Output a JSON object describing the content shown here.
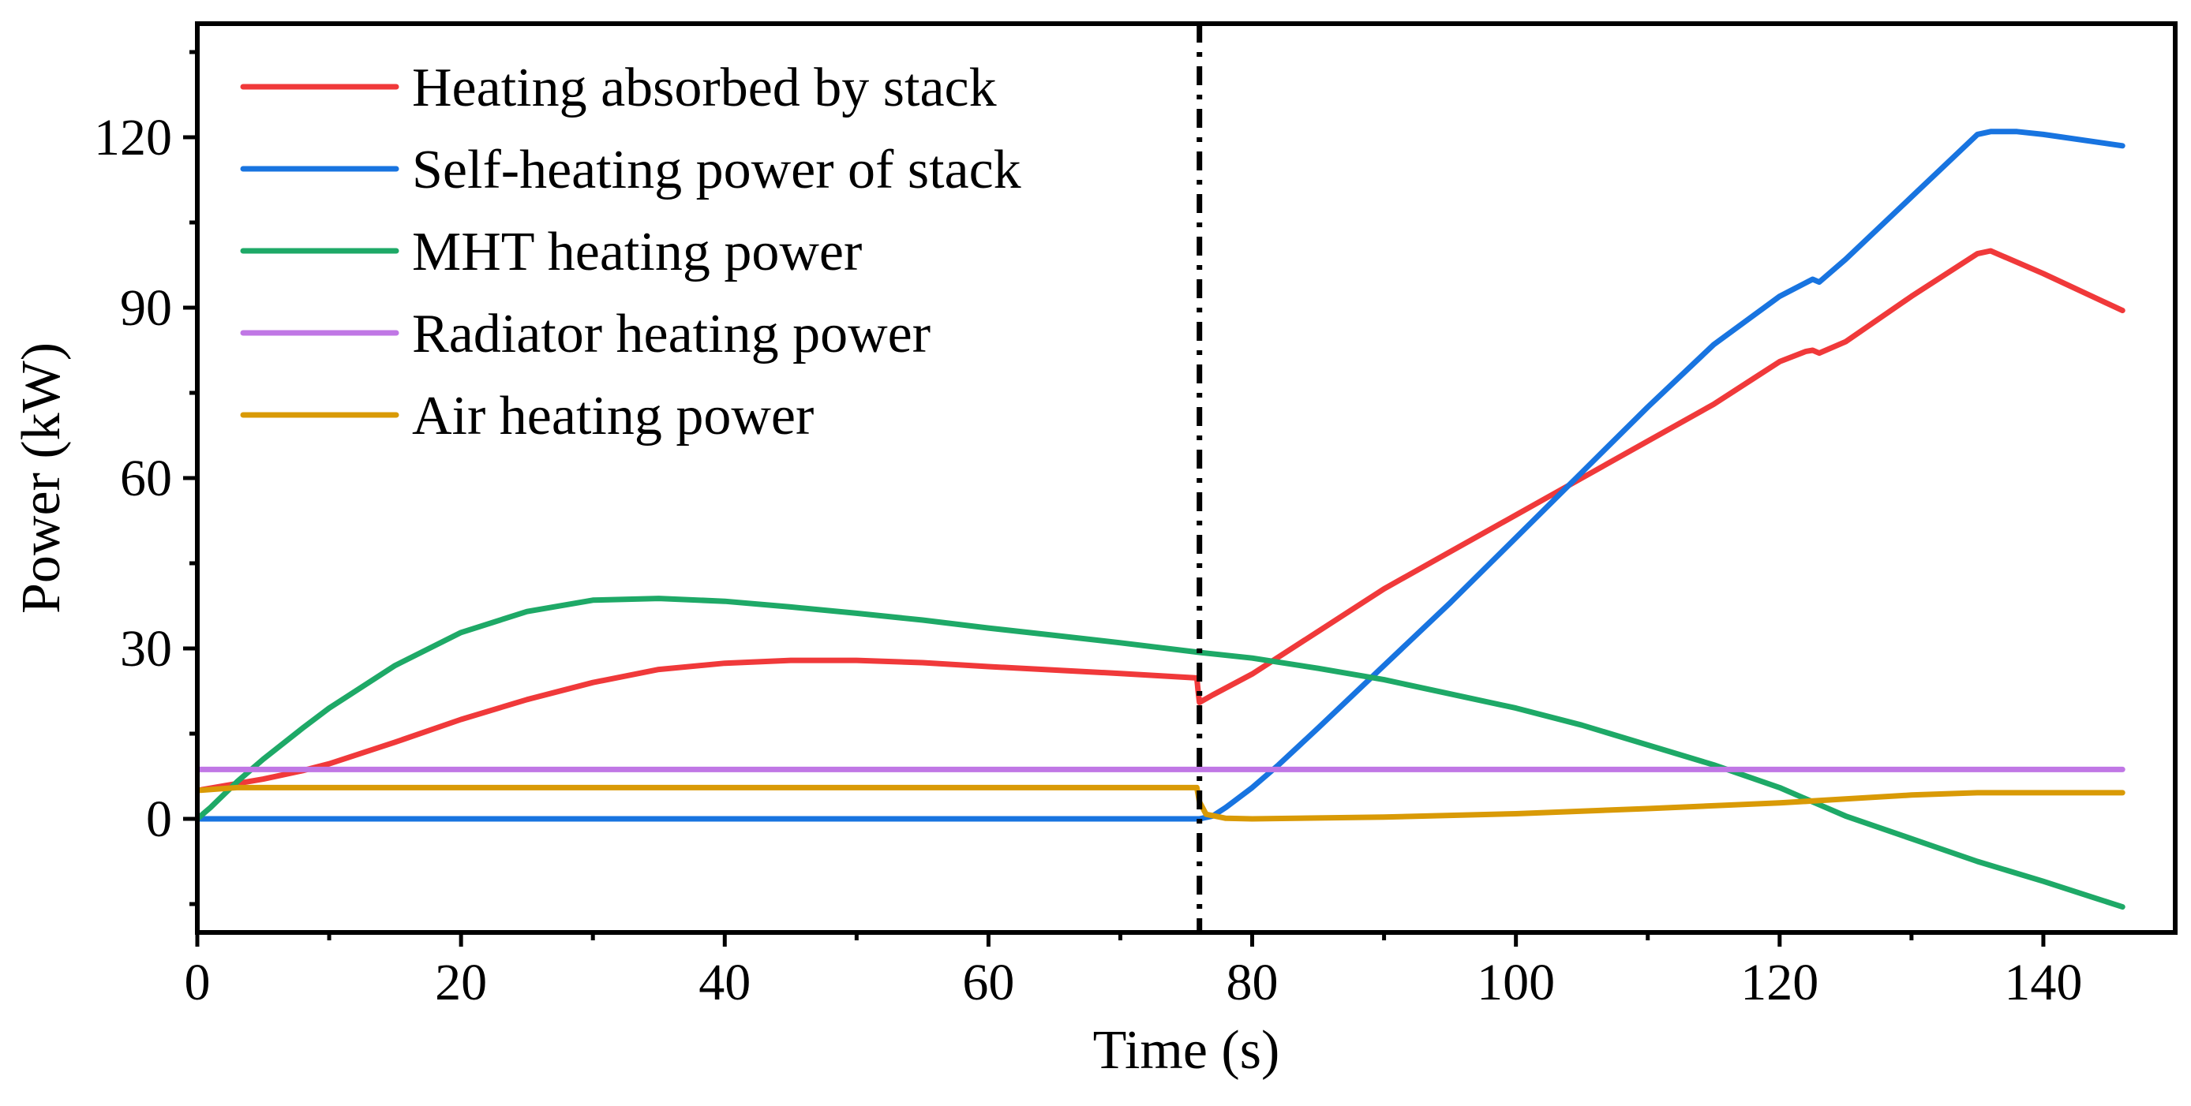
{
  "chart_data": {
    "type": "line",
    "title": "",
    "xlabel": "Time (s)",
    "ylabel": "Power (kW)",
    "xlim": [
      0,
      150
    ],
    "ylim": [
      -20,
      140
    ],
    "xticks": [
      0,
      20,
      40,
      60,
      80,
      100,
      120,
      140
    ],
    "xtick_labels": [
      "0",
      "20",
      "40",
      "60",
      "80",
      "100",
      "120",
      "140"
    ],
    "yticks": [
      0,
      30,
      60,
      90,
      120
    ],
    "ytick_labels": [
      "0",
      "30",
      "60",
      "90",
      "120"
    ],
    "x_minor_step": 10,
    "y_minor_step": 15,
    "grid": false,
    "legend_position": "top-left",
    "vline": {
      "x": 76,
      "style": "dash-dot",
      "color": "#000000"
    },
    "series": [
      {
        "name": "Heating absorbed by stack",
        "color": "#F0393A",
        "x": [
          0,
          2,
          5,
          8,
          10,
          15,
          20,
          25,
          30,
          35,
          40,
          45,
          50,
          55,
          60,
          65,
          70,
          75.8,
          75.9,
          76,
          77,
          80,
          85,
          90,
          95,
          100,
          105,
          110,
          115,
          118,
          120,
          122,
          122.5,
          123,
          125,
          130,
          135,
          136,
          140,
          146
        ],
        "values": [
          5,
          5.8,
          7,
          8.5,
          9.7,
          13.5,
          17.5,
          21,
          24,
          26.3,
          27.4,
          27.9,
          27.9,
          27.5,
          26.8,
          26.2,
          25.6,
          24.8,
          22.5,
          20.5,
          21.8,
          25.5,
          33,
          40.5,
          47,
          53.5,
          60,
          66.5,
          73,
          77.5,
          80.5,
          82.3,
          82.5,
          82,
          84,
          92,
          99.5,
          100,
          96,
          89.5
        ]
      },
      {
        "name": "Self-heating power of stack",
        "color": "#1874E0",
        "x": [
          0,
          10,
          20,
          30,
          40,
          50,
          60,
          70,
          76,
          77,
          78,
          80,
          82,
          85,
          90,
          95,
          100,
          105,
          110,
          115,
          120,
          122.5,
          123,
          125,
          130,
          135,
          136,
          138,
          140,
          146
        ],
        "values": [
          0,
          0,
          0,
          0,
          0,
          0,
          0,
          0,
          0,
          0.5,
          2,
          5.5,
          9.5,
          16,
          27,
          38,
          49.5,
          61,
          72.5,
          83.5,
          92,
          95,
          94.5,
          98.5,
          109.5,
          120.5,
          121,
          121,
          120.5,
          118.5
        ]
      },
      {
        "name": "MHT heating power",
        "color": "#1EA967",
        "x": [
          0,
          1,
          3,
          5,
          8,
          10,
          15,
          20,
          25,
          30,
          35,
          40,
          45,
          50,
          55,
          60,
          65,
          70,
          76,
          80,
          85,
          90,
          95,
          100,
          105,
          110,
          115,
          120,
          125,
          130,
          135,
          140,
          146
        ],
        "values": [
          0,
          2,
          6.5,
          10.5,
          16,
          19.5,
          27,
          32.8,
          36.5,
          38.5,
          38.8,
          38.3,
          37.3,
          36.2,
          35,
          33.6,
          32.3,
          31,
          29.3,
          28.3,
          26.5,
          24.5,
          22,
          19.5,
          16.5,
          13,
          9.5,
          5.5,
          0.5,
          -3.5,
          -7.5,
          -11,
          -15.5
        ]
      },
      {
        "name": "Radiator heating power",
        "color": "#C077E5",
        "x": [
          0,
          146
        ],
        "values": [
          8.7,
          8.7
        ]
      },
      {
        "name": "Air heating power",
        "color": "#D99A06",
        "x": [
          0,
          3,
          10,
          20,
          40,
          60,
          75.8,
          76,
          76.5,
          78,
          80,
          90,
          100,
          110,
          120,
          125,
          130,
          135,
          140,
          146
        ],
        "values": [
          5,
          5.5,
          5.5,
          5.5,
          5.5,
          5.5,
          5.5,
          3,
          0.8,
          0.1,
          0,
          0.3,
          0.9,
          1.8,
          2.8,
          3.5,
          4.2,
          4.6,
          4.6,
          4.6
        ]
      }
    ]
  }
}
